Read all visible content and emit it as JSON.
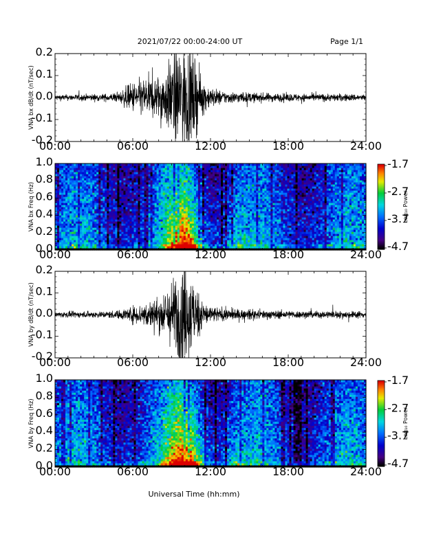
{
  "header": {
    "title": "2021/07/22  00:00-24:00 UT",
    "page": "Page 1/1"
  },
  "xlabel": "Universal Time (hh:mm)",
  "time_ticks": [
    "00:00",
    "06:00",
    "12:00",
    "18:00",
    "24:00"
  ],
  "colorbar": {
    "label": "Log₁₀ Power",
    "ticks": [
      "-1.7",
      "-2.7",
      "-3.7",
      "-4.7"
    ]
  },
  "colors": {
    "trace": "#000000",
    "background": "#ffffff"
  },
  "chart_data": [
    {
      "type": "line",
      "panel": "bx-waveform",
      "title": "",
      "ylabel": "VNA bx dB/dt (nT/sec)",
      "xlabel": "",
      "xlim": [
        0,
        24
      ],
      "ylim": [
        -0.2,
        0.2
      ],
      "yticks": [
        "0.2",
        "0.1",
        "0.0",
        "-0.1",
        "-0.2"
      ],
      "x_units": "hours UT",
      "series": [
        {
          "x": [
            0,
            1,
            2,
            3,
            4,
            5,
            5.5,
            6,
            6.5,
            7,
            7.5,
            8,
            8.5,
            9,
            9.5,
            10,
            10.5,
            11,
            11.5,
            12,
            13,
            14,
            15,
            16,
            17,
            18,
            19,
            20,
            21,
            22,
            23,
            24
          ],
          "envelope": [
            0.012,
            0.012,
            0.013,
            0.014,
            0.015,
            0.02,
            0.045,
            0.06,
            0.07,
            0.08,
            0.08,
            0.09,
            0.11,
            0.16,
            0.2,
            0.21,
            0.2,
            0.12,
            0.06,
            0.04,
            0.025,
            0.022,
            0.02,
            0.018,
            0.017,
            0.016,
            0.015,
            0.015,
            0.015,
            0.015,
            0.014,
            0.013
          ]
        }
      ]
    },
    {
      "type": "heatmap",
      "panel": "bx-spectrogram",
      "title": "",
      "ylabel": "VNA bx Freq (Hz)",
      "xlabel": "",
      "xlim": [
        0,
        24
      ],
      "ylim": [
        0,
        1.0
      ],
      "yticks": [
        "1.0",
        "0.8",
        "0.6",
        "0.4",
        "0.2",
        "0.0"
      ],
      "colorbar_range": [
        -4.7,
        -1.7
      ],
      "colormap": "rainbow (black-purple-blue-cyan-green-yellow-red)",
      "activity_hours": [
        {
          "center": 10.0,
          "width": 1.3,
          "peak": 1.0
        },
        {
          "center": 14.0,
          "width": 0.8,
          "peak": 0.25
        }
      ]
    },
    {
      "type": "line",
      "panel": "by-waveform",
      "title": "",
      "ylabel": "VNA by dB/dt (nT/sec)",
      "xlabel": "",
      "xlim": [
        0,
        24
      ],
      "ylim": [
        -0.2,
        0.2
      ],
      "yticks": [
        "0.2",
        "0.1",
        "0.0",
        "-0.1",
        "-0.2"
      ],
      "x_units": "hours UT",
      "series": [
        {
          "x": [
            0,
            1,
            2,
            3,
            4,
            5,
            5.5,
            6,
            6.5,
            7,
            7.5,
            8,
            8.5,
            9,
            9.5,
            10,
            10.5,
            11,
            11.5,
            12,
            13,
            14,
            15,
            16,
            17,
            18,
            19,
            20,
            21,
            22,
            23,
            24
          ],
          "envelope": [
            0.012,
            0.012,
            0.012,
            0.013,
            0.014,
            0.018,
            0.025,
            0.035,
            0.04,
            0.05,
            0.06,
            0.07,
            0.09,
            0.13,
            0.19,
            0.2,
            0.17,
            0.1,
            0.05,
            0.035,
            0.025,
            0.022,
            0.02,
            0.018,
            0.017,
            0.016,
            0.015,
            0.015,
            0.015,
            0.015,
            0.015,
            0.014
          ]
        }
      ]
    },
    {
      "type": "heatmap",
      "panel": "by-spectrogram",
      "title": "",
      "ylabel": "VNA by Freq (Hz)",
      "xlabel": "Universal Time (hh:mm)",
      "xlim": [
        0,
        24
      ],
      "ylim": [
        0,
        1.0
      ],
      "yticks": [
        "1.0",
        "0.8",
        "0.6",
        "0.4",
        "0.2",
        "0.0"
      ],
      "colorbar_range": [
        -4.7,
        -1.7
      ],
      "colormap": "rainbow (black-purple-blue-cyan-green-yellow-red)",
      "activity_hours": [
        {
          "center": 10.0,
          "width": 1.4,
          "peak": 1.0
        },
        {
          "center": 14.0,
          "width": 0.8,
          "peak": 0.25
        }
      ]
    }
  ]
}
